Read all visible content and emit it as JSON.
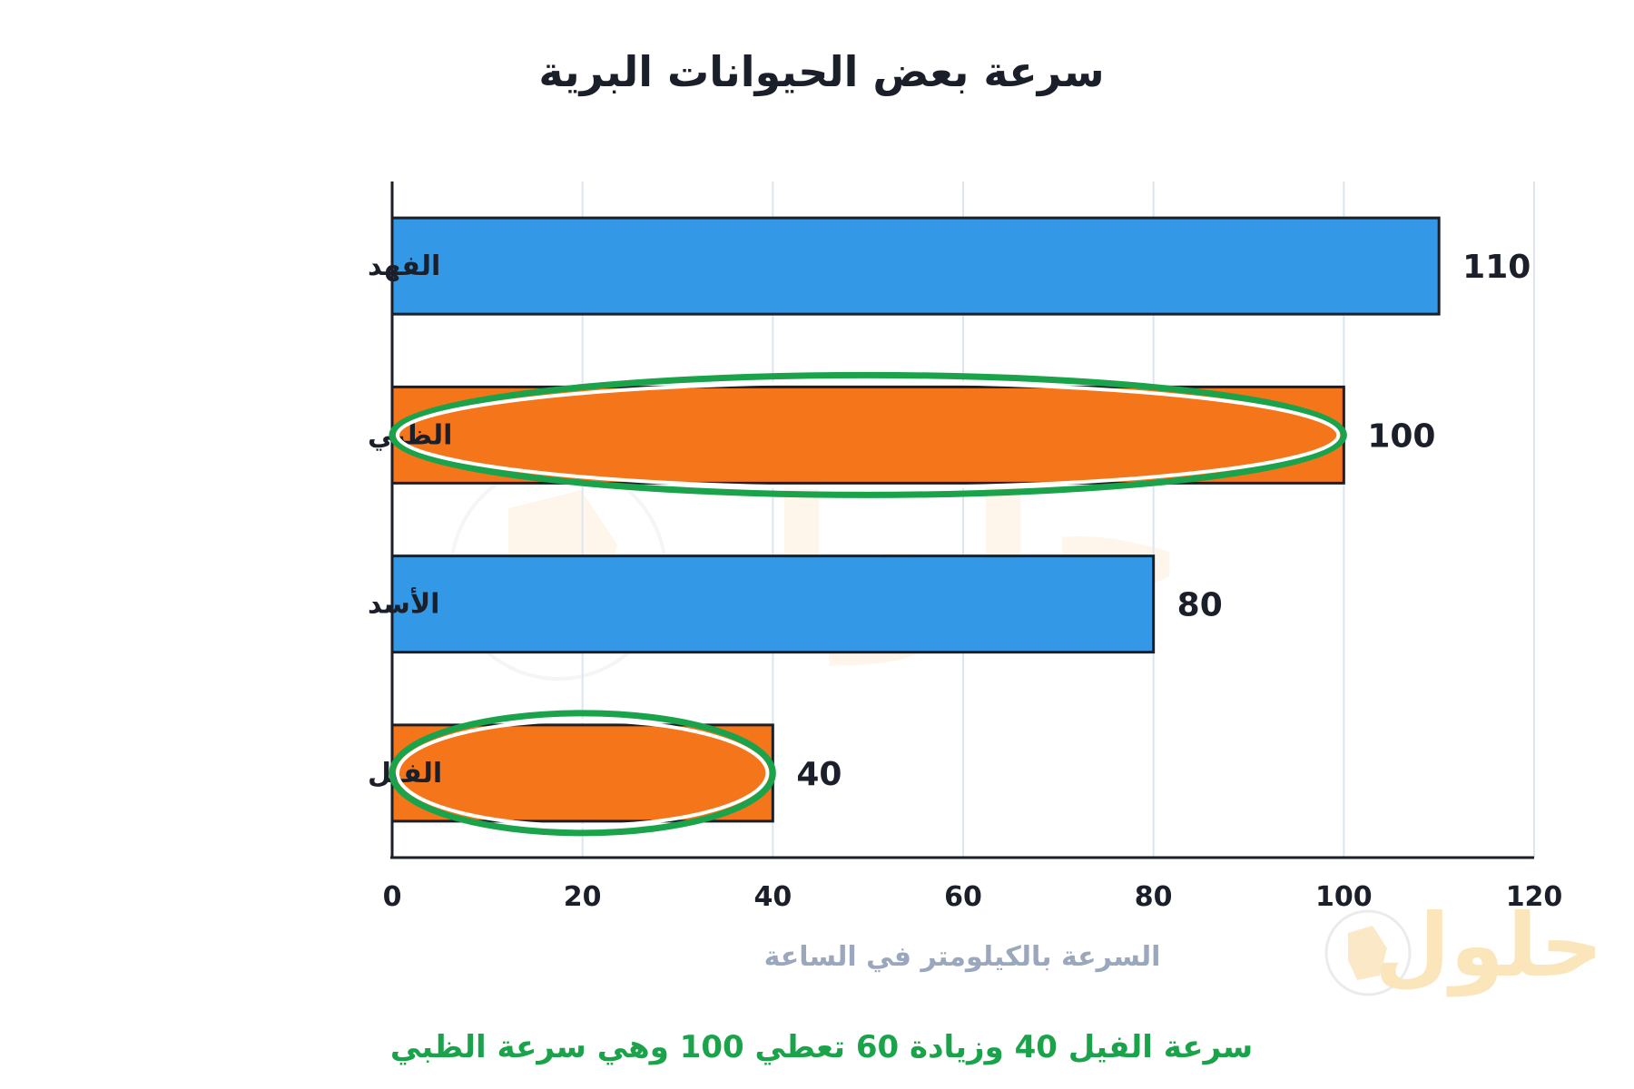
{
  "chart_data": {
    "type": "bar",
    "orientation": "horizontal",
    "title": "سرعة بعض الحيوانات البرية",
    "xlabel": "السرعة بالكيلومتر في الساعة",
    "ylabel": "",
    "xlim": [
      0,
      120
    ],
    "xticks": [
      0,
      20,
      40,
      60,
      80,
      100,
      120
    ],
    "grid": true,
    "categories": [
      "الفهد",
      "الظبي",
      "الأسد",
      "الفيل"
    ],
    "values": [
      110,
      100,
      80,
      40
    ],
    "value_labels": [
      "110",
      "100",
      "80",
      "40"
    ],
    "highlighted": [
      "الظبي",
      "الفيل"
    ],
    "colors": {
      "primary": "#3399e6",
      "highlight": "#f5761a",
      "ellipse": "#1aa34a",
      "grid": "#dde6f0"
    },
    "annotation": "سرعة الفيل 40 وزيادة 60 تعطي 100 وهي سرعة الظبي"
  },
  "watermark": {
    "text": "حلول",
    "icon": "book-icon"
  }
}
